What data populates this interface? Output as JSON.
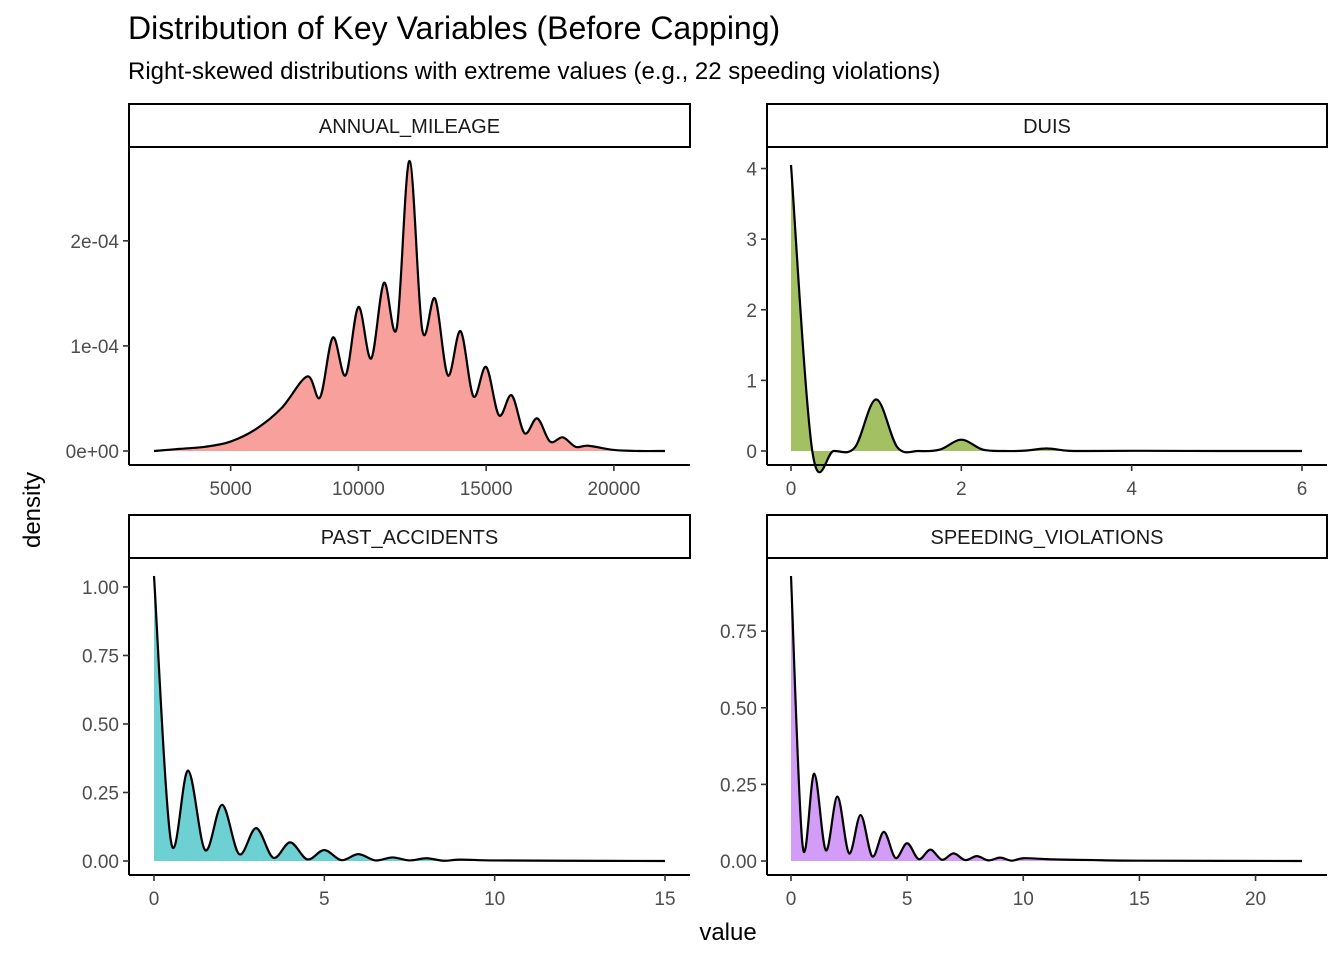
{
  "title": "Distribution of Key Variables (Before Capping)",
  "subtitle": "Right-skewed distributions with extreme values (e.g., 22 speeding violations)",
  "chart_data": {
    "type": "area",
    "xlabel": "value",
    "ylabel": "density",
    "facet_layout": "2x2",
    "legend": "none",
    "grid": false,
    "panels": [
      {
        "name": "ANNUAL_MILEAGE",
        "color": "#F8A09C",
        "xlim": [
          2000,
          22000
        ],
        "ylim": [
          0,
          0.000275
        ],
        "xticks": [
          5000,
          10000,
          15000,
          20000
        ],
        "xtick_labels": [
          "5000",
          "10000",
          "15000",
          "20000"
        ],
        "yticks": [
          0,
          0.0001,
          0.0002
        ],
        "ytick_labels": [
          "0e+00",
          "1e-04",
          "2e-04"
        ],
        "x": [
          2000,
          3000,
          4000,
          5000,
          6000,
          7000,
          8000,
          8500,
          9000,
          9500,
          10000,
          10500,
          11000,
          11500,
          12000,
          12500,
          13000,
          13500,
          14000,
          14500,
          15000,
          15500,
          16000,
          16500,
          17000,
          17500,
          18000,
          18500,
          19000,
          20000,
          21000,
          22000
        ],
        "y": [
          0.0,
          2e-06,
          4e-06,
          9e-06,
          2.1e-05,
          4.1e-05,
          7.1e-05,
          5.1e-05,
          0.000108,
          7.2e-05,
          0.000137,
          8.8e-05,
          0.00016,
          0.000117,
          0.000276,
          0.000115,
          0.000145,
          7.2e-05,
          0.000114,
          5.2e-05,
          8e-05,
          3.4e-05,
          5.3e-05,
          1.7e-05,
          3.1e-05,
          9e-06,
          1.3e-05,
          4e-06,
          5e-06,
          1e-06,
          0.0,
          0.0
        ]
      },
      {
        "name": "DUIS",
        "color": "#A3C162",
        "xlim": [
          0,
          6
        ],
        "ylim": [
          0,
          4.05
        ],
        "xticks": [
          0,
          2,
          4,
          6
        ],
        "xtick_labels": [
          "0",
          "2",
          "4",
          "6"
        ],
        "yticks": [
          0,
          1,
          2,
          3,
          4
        ],
        "ytick_labels": [
          "0",
          "1",
          "2",
          "3",
          "4"
        ],
        "x": [
          0,
          0.25,
          0.5,
          0.75,
          1.0,
          1.25,
          1.5,
          1.75,
          2.0,
          2.25,
          2.5,
          2.75,
          3.0,
          3.25,
          3.5,
          4.0,
          5.0,
          6.0
        ],
        "y": [
          4.05,
          0.0,
          0.0,
          0.05,
          0.73,
          0.05,
          0.0,
          0.02,
          0.16,
          0.02,
          0.0,
          0.005,
          0.035,
          0.004,
          0.0,
          0.003,
          0.0,
          0.0
        ]
      },
      {
        "name": "PAST_ACCIDENTS",
        "color": "#6DD1D3",
        "xlim": [
          0,
          15
        ],
        "ylim": [
          0,
          1.04
        ],
        "xticks": [
          0,
          5,
          10,
          15
        ],
        "xtick_labels": [
          "0",
          "5",
          "10",
          "15"
        ],
        "yticks": [
          0,
          0.25,
          0.5,
          0.75,
          1.0
        ],
        "ytick_labels": [
          "0.00",
          "0.25",
          "0.50",
          "0.75",
          "1.00"
        ],
        "x": [
          0,
          0.5,
          1.0,
          1.5,
          2.0,
          2.5,
          3.0,
          3.5,
          4.0,
          4.5,
          5.0,
          5.5,
          6.0,
          6.5,
          7.0,
          7.5,
          8.0,
          8.5,
          9.0,
          10.0,
          12.0,
          15.0
        ],
        "y": [
          1.04,
          0.07,
          0.33,
          0.04,
          0.205,
          0.025,
          0.12,
          0.012,
          0.068,
          0.006,
          0.04,
          0.003,
          0.025,
          0.002,
          0.013,
          0.002,
          0.01,
          0.001,
          0.005,
          0.002,
          0.001,
          0.0
        ]
      },
      {
        "name": "SPEEDING_VIOLATIONS",
        "color": "#D39CF7",
        "xlim": [
          0,
          22
        ],
        "ylim": [
          0,
          0.93
        ],
        "xticks": [
          0,
          5,
          10,
          15,
          20
        ],
        "xtick_labels": [
          "0",
          "5",
          "10",
          "15",
          "20"
        ],
        "yticks": [
          0,
          0.25,
          0.5,
          0.75
        ],
        "ytick_labels": [
          "0.00",
          "0.25",
          "0.50",
          "0.75"
        ],
        "x": [
          0,
          0.5,
          1.0,
          1.5,
          2.0,
          2.5,
          3.0,
          3.5,
          4.0,
          4.5,
          5.0,
          5.5,
          6.0,
          6.5,
          7.0,
          7.5,
          8.0,
          8.5,
          9.0,
          9.5,
          10.0,
          11.0,
          12.0,
          13.0,
          15.0,
          22.0
        ],
        "y": [
          0.93,
          0.05,
          0.285,
          0.035,
          0.21,
          0.025,
          0.15,
          0.015,
          0.095,
          0.01,
          0.058,
          0.006,
          0.037,
          0.004,
          0.025,
          0.003,
          0.016,
          0.002,
          0.011,
          0.001,
          0.009,
          0.006,
          0.004,
          0.003,
          0.001,
          0.0
        ]
      }
    ]
  }
}
